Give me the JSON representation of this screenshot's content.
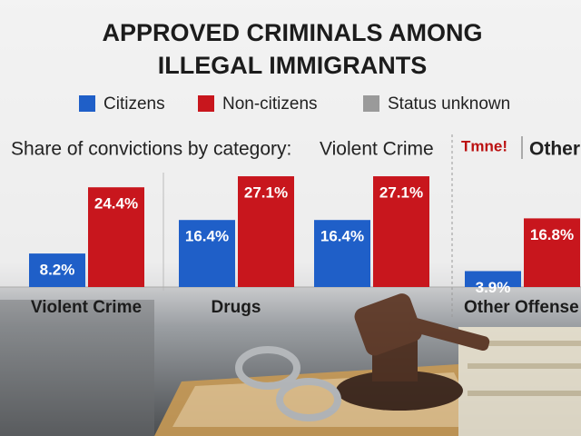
{
  "chart_data": {
    "type": "bar",
    "title": "APPROVED CRIMINALS AMONG ILLEGAL IMMIGRANTS",
    "subtitle": "Share of convictions by category:",
    "annotations": [
      "Violent Crime",
      "Tmne!",
      "Other"
    ],
    "categories": [
      "Violent Crime",
      "Drugs",
      null,
      "Other Offense"
    ],
    "series": [
      {
        "name": "Citizens",
        "color": "#1f5fc8",
        "values": [
          8.2,
          16.4,
          16.4,
          3.9
        ],
        "value_labels": [
          "8.2%",
          "16.4%",
          "16.4%",
          "3.9%"
        ]
      },
      {
        "name": "Non-citizens",
        "color": "#c8161d",
        "values": [
          24.4,
          27.1,
          27.1,
          16.8
        ],
        "value_labels": [
          "24.4%",
          "27.1%",
          "27.1%",
          "16.8%"
        ]
      },
      {
        "name": "Status unknown",
        "color": "#9a9a9a",
        "values": [
          null,
          null,
          null,
          null
        ]
      }
    ]
  }
}
